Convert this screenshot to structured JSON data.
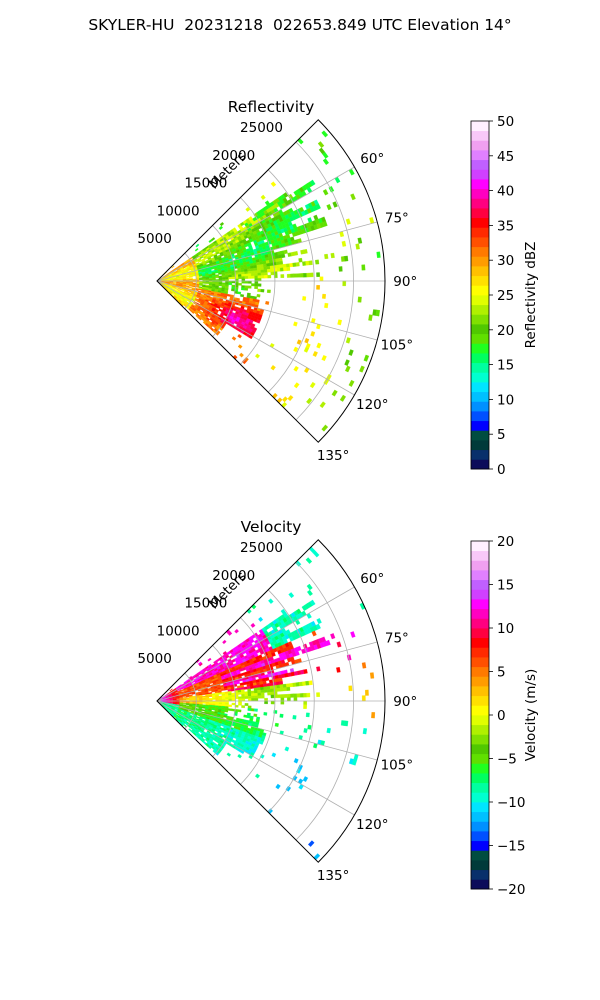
{
  "figure": {
    "title": "SKYLER-HU  20231218  022653.849 UTC Elevation 14°"
  },
  "chart_data": [
    {
      "type": "heatmap",
      "title": "Reflectivity",
      "radial_label": "Meters",
      "azimuth_range_deg": [
        45,
        135
      ],
      "range_max_m": 29000,
      "radial_ticks": [
        5000,
        10000,
        15000,
        20000,
        25000
      ],
      "radial_tick_labels": [
        "5000",
        "10000",
        "15000",
        "20000",
        "25000"
      ],
      "angle_ticks": [
        60,
        75,
        90,
        105,
        120,
        135
      ],
      "angle_tick_labels": [
        "60°",
        "75°",
        "90°",
        "105°",
        "120°",
        "135°"
      ],
      "grid": true,
      "colorbar": {
        "label": "Reflectivity dBZ",
        "range": [
          0,
          50
        ],
        "ticks": [
          0,
          5,
          10,
          15,
          20,
          25,
          30,
          35,
          40,
          45,
          50
        ],
        "tick_labels": [
          "0",
          "5",
          "10",
          "15",
          "20",
          "25",
          "30",
          "35",
          "40",
          "45",
          "50"
        ],
        "colors": [
          "#0c0c5a",
          "#08306b",
          "#003a3a",
          "#004d40",
          "#0000ff",
          "#0050ff",
          "#0090ff",
          "#00c0ff",
          "#00e5ff",
          "#00ffd0",
          "#00ffa0",
          "#00ff60",
          "#20ff20",
          "#60e000",
          "#50c800",
          "#80e000",
          "#b0f000",
          "#e0ff00",
          "#ffff00",
          "#ffe000",
          "#ffc000",
          "#ff9c00",
          "#ff7a00",
          "#ff5000",
          "#ff2a00",
          "#ff0000",
          "#ff0040",
          "#ff0080",
          "#ff00c0",
          "#ff00ff",
          "#d040ff",
          "#c060ff",
          "#e080ff",
          "#f0a0f0",
          "#f8c8f8",
          "#fff0ff"
        ]
      }
    },
    {
      "type": "heatmap",
      "title": "Velocity",
      "radial_label": "Meters",
      "azimuth_range_deg": [
        45,
        135
      ],
      "range_max_m": 29000,
      "radial_ticks": [
        5000,
        10000,
        15000,
        20000,
        25000
      ],
      "radial_tick_labels": [
        "5000",
        "10000",
        "15000",
        "20000",
        "25000"
      ],
      "angle_ticks": [
        60,
        75,
        90,
        105,
        120,
        135
      ],
      "angle_tick_labels": [
        "60°",
        "75°",
        "90°",
        "105°",
        "120°",
        "135°"
      ],
      "grid": true,
      "colorbar": {
        "label": "Velocity (m/s)",
        "range": [
          -20,
          20
        ],
        "ticks": [
          -20,
          -15,
          -10,
          -5,
          0,
          5,
          10,
          15,
          20
        ],
        "tick_labels": [
          "−20",
          "−15",
          "−10",
          "−5",
          "0",
          "5",
          "10",
          "15",
          "20"
        ],
        "colors": [
          "#0c0c5a",
          "#08306b",
          "#003a3a",
          "#004d40",
          "#0000ff",
          "#0050ff",
          "#0090ff",
          "#00c0ff",
          "#00e5ff",
          "#00ffd0",
          "#00ffa0",
          "#00ff60",
          "#20ff20",
          "#60e000",
          "#50c800",
          "#80e000",
          "#b0f000",
          "#e0ff00",
          "#ffff00",
          "#ffe000",
          "#ffc000",
          "#ff9c00",
          "#ff7a00",
          "#ff5000",
          "#ff2a00",
          "#ff0000",
          "#ff0040",
          "#ff0080",
          "#ff00c0",
          "#ff00ff",
          "#d040ff",
          "#c060ff",
          "#e080ff",
          "#f0a0f0",
          "#f8c8f8",
          "#fff0ff"
        ]
      }
    }
  ]
}
